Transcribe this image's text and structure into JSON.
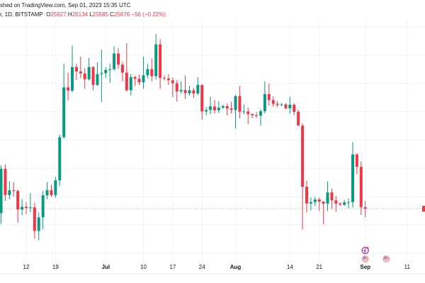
{
  "header": {
    "published": "shed on TradingView.com, Sep 01, 2023 15:35 UTC",
    "symbol": "r, 1D, BITSTAMP",
    "o_label": "O",
    "o_value": "25927",
    "h_label": "H",
    "h_value": "26134",
    "l_label": "L",
    "l_value": "25585",
    "c_label": "C",
    "c_value": "25876",
    "change": "−56 (−0.22%)"
  },
  "colors": {
    "up": "#089981",
    "down": "#f23645",
    "grid": "#f0f3fa",
    "last_price_line": "#b2b5be"
  },
  "chart_data": {
    "type": "candlestick",
    "title": "",
    "xlabel": "",
    "ylabel": "",
    "interval": "1D",
    "last_price": 25876,
    "x_ticks": [
      {
        "date": "2023-06-12",
        "label": "12",
        "bold": false
      },
      {
        "date": "2023-06-19",
        "label": "19",
        "bold": false
      },
      {
        "date": "2023-07-01",
        "label": "Jul",
        "bold": true
      },
      {
        "date": "2023-07-10",
        "label": "10",
        "bold": false
      },
      {
        "date": "2023-07-17",
        "label": "17",
        "bold": false
      },
      {
        "date": "2023-07-24",
        "label": "24",
        "bold": false
      },
      {
        "date": "2023-08-01",
        "label": "Aug",
        "bold": true
      },
      {
        "date": "2023-08-14",
        "label": "14",
        "bold": false
      },
      {
        "date": "2023-08-21",
        "label": "21",
        "bold": false
      },
      {
        "date": "2023-09-01",
        "label": "Sep",
        "bold": true
      },
      {
        "date": "2023-09-11",
        "label": "11",
        "bold": false
      }
    ],
    "events": [
      {
        "date": "2023-09-01",
        "icon": "lightning-icon"
      },
      {
        "date": "2023-09-01",
        "icon": "us-flag-icon"
      },
      {
        "date": "2023-09-06",
        "icon": "us-flag-icon"
      }
    ],
    "candles": [
      [
        "2023-06-06",
        25730,
        27350,
        25360,
        27230
      ],
      [
        "2023-06-07",
        27230,
        27380,
        26140,
        26340
      ],
      [
        "2023-06-08",
        26340,
        26800,
        26200,
        26500
      ],
      [
        "2023-06-09",
        26500,
        26780,
        26290,
        26480
      ],
      [
        "2023-06-10",
        26480,
        26530,
        25400,
        25850
      ],
      [
        "2023-06-11",
        25850,
        26200,
        25650,
        25940
      ],
      [
        "2023-06-12",
        25940,
        26100,
        25700,
        25900
      ],
      [
        "2023-06-13",
        25900,
        26400,
        25750,
        25920
      ],
      [
        "2023-06-14",
        25920,
        26080,
        24850,
        25120
      ],
      [
        "2023-06-15",
        25120,
        25750,
        24800,
        25580
      ],
      [
        "2023-06-16",
        25580,
        26480,
        25170,
        26330
      ],
      [
        "2023-06-17",
        26330,
        26780,
        26200,
        26510
      ],
      [
        "2023-06-18",
        26510,
        26690,
        26280,
        26340
      ],
      [
        "2023-06-19",
        26340,
        26950,
        26250,
        26840
      ],
      [
        "2023-06-20",
        26840,
        28400,
        26650,
        28310
      ],
      [
        "2023-06-21",
        28310,
        30800,
        28250,
        30000
      ],
      [
        "2023-06-22",
        30000,
        30500,
        29550,
        29890
      ],
      [
        "2023-06-23",
        29890,
        31420,
        29820,
        30690
      ],
      [
        "2023-06-24",
        30690,
        30800,
        30250,
        30540
      ],
      [
        "2023-06-25",
        30540,
        31050,
        30310,
        30470
      ],
      [
        "2023-06-26",
        30470,
        30650,
        29950,
        30270
      ],
      [
        "2023-06-27",
        30270,
        31000,
        30230,
        30690
      ],
      [
        "2023-06-28",
        30690,
        30720,
        29900,
        30080
      ],
      [
        "2023-06-29",
        30080,
        30850,
        30050,
        30450
      ],
      [
        "2023-06-30",
        30450,
        31280,
        29500,
        30480
      ],
      [
        "2023-07-01",
        30480,
        30680,
        30320,
        30590
      ],
      [
        "2023-07-02",
        30590,
        30800,
        30150,
        30620
      ],
      [
        "2023-07-03",
        30620,
        31390,
        30560,
        31150
      ],
      [
        "2023-07-04",
        31150,
        31330,
        30620,
        30770
      ],
      [
        "2023-07-05",
        30770,
        30870,
        30200,
        30500
      ],
      [
        "2023-07-06",
        30500,
        31500,
        29850,
        29900
      ],
      [
        "2023-07-07",
        29900,
        30450,
        29720,
        30350
      ],
      [
        "2023-07-08",
        30350,
        30390,
        30050,
        30290
      ],
      [
        "2023-07-09",
        30290,
        30430,
        30080,
        30170
      ],
      [
        "2023-07-10",
        30170,
        31050,
        29950,
        30410
      ],
      [
        "2023-07-11",
        30410,
        30800,
        30300,
        30620
      ],
      [
        "2023-07-12",
        30620,
        30980,
        30200,
        30380
      ],
      [
        "2023-07-13",
        30380,
        31814,
        30260,
        31460
      ],
      [
        "2023-07-14",
        31460,
        31640,
        29950,
        30320
      ],
      [
        "2023-07-15",
        30320,
        30400,
        30250,
        30300
      ],
      [
        "2023-07-16",
        30300,
        30450,
        30080,
        30240
      ],
      [
        "2023-07-17",
        30240,
        30340,
        29670,
        30140
      ],
      [
        "2023-07-18",
        30140,
        30240,
        29520,
        29860
      ],
      [
        "2023-07-19",
        29860,
        30200,
        29780,
        29910
      ],
      [
        "2023-07-20",
        29910,
        30400,
        29600,
        29800
      ],
      [
        "2023-07-21",
        29800,
        30050,
        29720,
        29900
      ],
      [
        "2023-07-22",
        29900,
        29990,
        29640,
        29790
      ],
      [
        "2023-07-23",
        29790,
        30350,
        29730,
        30080
      ],
      [
        "2023-07-24",
        30080,
        30100,
        28900,
        29180
      ],
      [
        "2023-07-25",
        29180,
        29330,
        29050,
        29230
      ],
      [
        "2023-07-26",
        29230,
        29680,
        29090,
        29350
      ],
      [
        "2023-07-27",
        29350,
        29570,
        29110,
        29220
      ],
      [
        "2023-07-28",
        29220,
        29530,
        29130,
        29310
      ],
      [
        "2023-07-29",
        29310,
        29410,
        29260,
        29360
      ],
      [
        "2023-07-30",
        29360,
        29450,
        29040,
        29280
      ],
      [
        "2023-07-31",
        29280,
        29520,
        29110,
        29230
      ],
      [
        "2023-08-01",
        29230,
        29740,
        28600,
        29700
      ],
      [
        "2023-08-02",
        29700,
        30050,
        28950,
        29170
      ],
      [
        "2023-08-03",
        29170,
        29420,
        29090,
        29180
      ],
      [
        "2023-08-04",
        29180,
        29310,
        28750,
        29090
      ],
      [
        "2023-08-05",
        29090,
        29110,
        28950,
        29050
      ],
      [
        "2023-08-06",
        29050,
        29160,
        28960,
        29040
      ],
      [
        "2023-08-07",
        29040,
        29250,
        28700,
        29190
      ],
      [
        "2023-08-08",
        29190,
        30200,
        29110,
        29770
      ],
      [
        "2023-08-09",
        29770,
        30130,
        29380,
        29570
      ],
      [
        "2023-08-10",
        29570,
        29700,
        29350,
        29440
      ],
      [
        "2023-08-11",
        29440,
        29540,
        29330,
        29400
      ],
      [
        "2023-08-12",
        29400,
        29470,
        29360,
        29420
      ],
      [
        "2023-08-13",
        29420,
        29460,
        29250,
        29290
      ],
      [
        "2023-08-14",
        29290,
        29680,
        29100,
        29410
      ],
      [
        "2023-08-15",
        29410,
        29460,
        29050,
        29170
      ],
      [
        "2023-08-16",
        29170,
        29240,
        28700,
        28700
      ],
      [
        "2023-08-17",
        28700,
        28780,
        25170,
        26620
      ],
      [
        "2023-08-18",
        26620,
        26830,
        25750,
        26050
      ],
      [
        "2023-08-19",
        26050,
        26260,
        25820,
        26100
      ],
      [
        "2023-08-20",
        26100,
        26280,
        25960,
        26190
      ],
      [
        "2023-08-21",
        26190,
        26250,
        25800,
        26120
      ],
      [
        "2023-08-22",
        26120,
        26130,
        25350,
        26050
      ],
      [
        "2023-08-23",
        26050,
        26800,
        25800,
        26430
      ],
      [
        "2023-08-24",
        26430,
        26560,
        25860,
        26160
      ],
      [
        "2023-08-25",
        26160,
        26300,
        25770,
        26050
      ],
      [
        "2023-08-26",
        26050,
        26100,
        25980,
        26010
      ],
      [
        "2023-08-27",
        26010,
        26170,
        25970,
        26090
      ],
      [
        "2023-08-28",
        26090,
        26220,
        25880,
        26100
      ],
      [
        "2023-08-29",
        26100,
        28140,
        25920,
        27720
      ],
      [
        "2023-08-30",
        27720,
        27760,
        27050,
        27300
      ],
      [
        "2023-08-31",
        27300,
        27480,
        25660,
        25930
      ],
      [
        "2023-09-01",
        25927,
        26134,
        25585,
        25876
      ]
    ]
  }
}
